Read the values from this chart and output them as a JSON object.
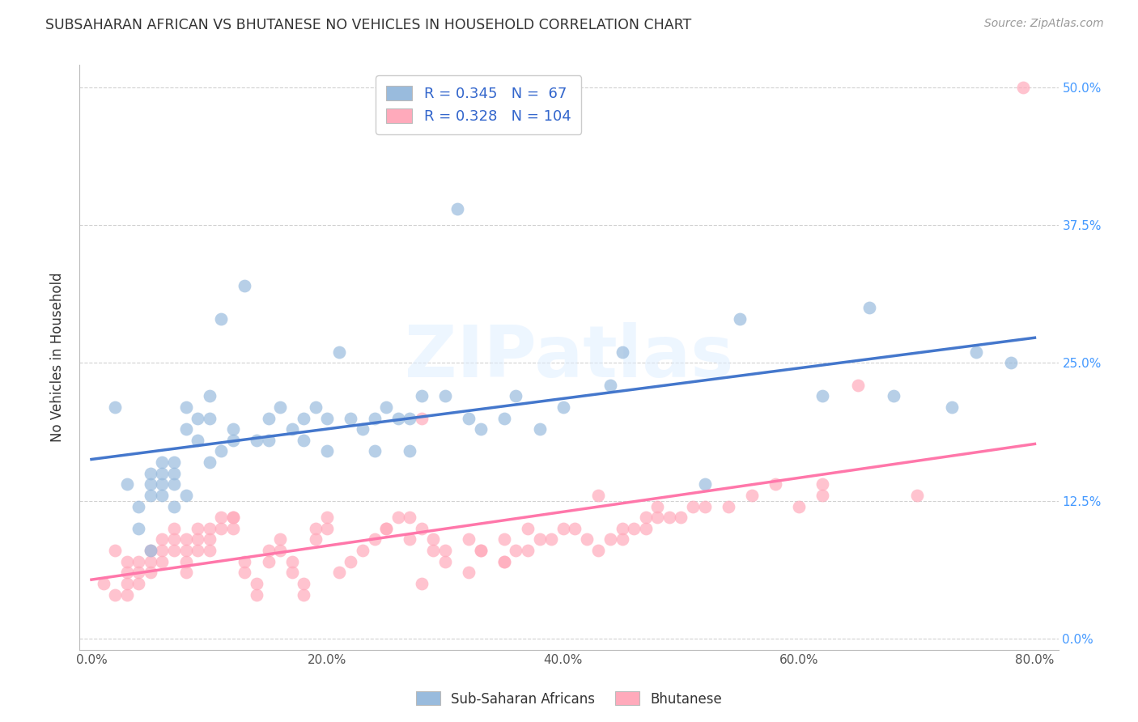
{
  "title": "SUBSAHARAN AFRICAN VS BHUTANESE NO VEHICLES IN HOUSEHOLD CORRELATION CHART",
  "source": "Source: ZipAtlas.com",
  "xlabel_ticks": [
    "0.0%",
    "20.0%",
    "40.0%",
    "60.0%",
    "80.0%"
  ],
  "xlabel_tick_vals": [
    0.0,
    0.2,
    0.4,
    0.6,
    0.8
  ],
  "ylabel_ticks": [
    "0.0%",
    "12.5%",
    "25.0%",
    "37.5%",
    "50.0%"
  ],
  "ylabel_tick_vals": [
    0.0,
    0.125,
    0.25,
    0.375,
    0.5
  ],
  "ylabel": "No Vehicles in Household",
  "xlim": [
    -0.01,
    0.82
  ],
  "ylim": [
    -0.01,
    0.52
  ],
  "blue_color": "#99BBDD",
  "pink_color": "#FFAABB",
  "blue_line_color": "#4477CC",
  "pink_line_color": "#FF77AA",
  "blue_R": 0.345,
  "blue_N": 67,
  "pink_R": 0.328,
  "pink_N": 104,
  "watermark": "ZIPatlas",
  "legend_labels": [
    "Sub-Saharan Africans",
    "Bhutanese"
  ],
  "blue_scatter_x": [
    0.02,
    0.03,
    0.04,
    0.04,
    0.05,
    0.05,
    0.05,
    0.05,
    0.06,
    0.06,
    0.06,
    0.06,
    0.07,
    0.07,
    0.07,
    0.07,
    0.08,
    0.08,
    0.08,
    0.09,
    0.09,
    0.1,
    0.1,
    0.1,
    0.11,
    0.11,
    0.12,
    0.12,
    0.13,
    0.14,
    0.15,
    0.15,
    0.16,
    0.17,
    0.18,
    0.18,
    0.19,
    0.2,
    0.2,
    0.21,
    0.22,
    0.23,
    0.24,
    0.24,
    0.25,
    0.26,
    0.27,
    0.27,
    0.28,
    0.3,
    0.31,
    0.32,
    0.33,
    0.35,
    0.36,
    0.38,
    0.4,
    0.44,
    0.45,
    0.52,
    0.55,
    0.62,
    0.66,
    0.68,
    0.73,
    0.75,
    0.78
  ],
  "blue_scatter_y": [
    0.21,
    0.14,
    0.12,
    0.1,
    0.15,
    0.14,
    0.13,
    0.08,
    0.16,
    0.15,
    0.14,
    0.13,
    0.16,
    0.15,
    0.14,
    0.12,
    0.21,
    0.19,
    0.13,
    0.2,
    0.18,
    0.22,
    0.2,
    0.16,
    0.29,
    0.17,
    0.19,
    0.18,
    0.32,
    0.18,
    0.2,
    0.18,
    0.21,
    0.19,
    0.2,
    0.18,
    0.21,
    0.2,
    0.17,
    0.26,
    0.2,
    0.19,
    0.2,
    0.17,
    0.21,
    0.2,
    0.2,
    0.17,
    0.22,
    0.22,
    0.39,
    0.2,
    0.19,
    0.2,
    0.22,
    0.19,
    0.21,
    0.23,
    0.26,
    0.14,
    0.29,
    0.22,
    0.3,
    0.22,
    0.21,
    0.26,
    0.25
  ],
  "pink_scatter_x": [
    0.01,
    0.02,
    0.02,
    0.03,
    0.03,
    0.03,
    0.03,
    0.04,
    0.04,
    0.04,
    0.05,
    0.05,
    0.05,
    0.06,
    0.06,
    0.06,
    0.07,
    0.07,
    0.07,
    0.08,
    0.08,
    0.08,
    0.08,
    0.09,
    0.09,
    0.09,
    0.1,
    0.1,
    0.1,
    0.11,
    0.11,
    0.12,
    0.12,
    0.13,
    0.13,
    0.14,
    0.14,
    0.15,
    0.15,
    0.16,
    0.16,
    0.17,
    0.17,
    0.18,
    0.18,
    0.19,
    0.19,
    0.2,
    0.2,
    0.21,
    0.22,
    0.23,
    0.24,
    0.25,
    0.26,
    0.27,
    0.28,
    0.29,
    0.3,
    0.32,
    0.33,
    0.35,
    0.36,
    0.38,
    0.4,
    0.42,
    0.45,
    0.47,
    0.48,
    0.43,
    0.3,
    0.28,
    0.32,
    0.35,
    0.37,
    0.39,
    0.41,
    0.43,
    0.45,
    0.47,
    0.49,
    0.51,
    0.28,
    0.12,
    0.65,
    0.7,
    0.5,
    0.52,
    0.54,
    0.56,
    0.58,
    0.6,
    0.62,
    0.44,
    0.46,
    0.48,
    0.33,
    0.35,
    0.37,
    0.25,
    0.27,
    0.29,
    0.79,
    0.62
  ],
  "pink_scatter_y": [
    0.05,
    0.08,
    0.04,
    0.07,
    0.06,
    0.05,
    0.04,
    0.07,
    0.06,
    0.05,
    0.08,
    0.07,
    0.06,
    0.09,
    0.08,
    0.07,
    0.1,
    0.09,
    0.08,
    0.09,
    0.08,
    0.07,
    0.06,
    0.1,
    0.09,
    0.08,
    0.1,
    0.09,
    0.08,
    0.11,
    0.1,
    0.11,
    0.1,
    0.07,
    0.06,
    0.05,
    0.04,
    0.08,
    0.07,
    0.09,
    0.08,
    0.07,
    0.06,
    0.05,
    0.04,
    0.1,
    0.09,
    0.11,
    0.1,
    0.06,
    0.07,
    0.08,
    0.09,
    0.1,
    0.11,
    0.09,
    0.1,
    0.08,
    0.07,
    0.09,
    0.08,
    0.07,
    0.08,
    0.09,
    0.1,
    0.09,
    0.1,
    0.11,
    0.12,
    0.13,
    0.08,
    0.05,
    0.06,
    0.07,
    0.08,
    0.09,
    0.1,
    0.08,
    0.09,
    0.1,
    0.11,
    0.12,
    0.2,
    0.11,
    0.23,
    0.13,
    0.11,
    0.12,
    0.12,
    0.13,
    0.14,
    0.12,
    0.13,
    0.09,
    0.1,
    0.11,
    0.08,
    0.09,
    0.1,
    0.1,
    0.11,
    0.09,
    0.5,
    0.14
  ]
}
